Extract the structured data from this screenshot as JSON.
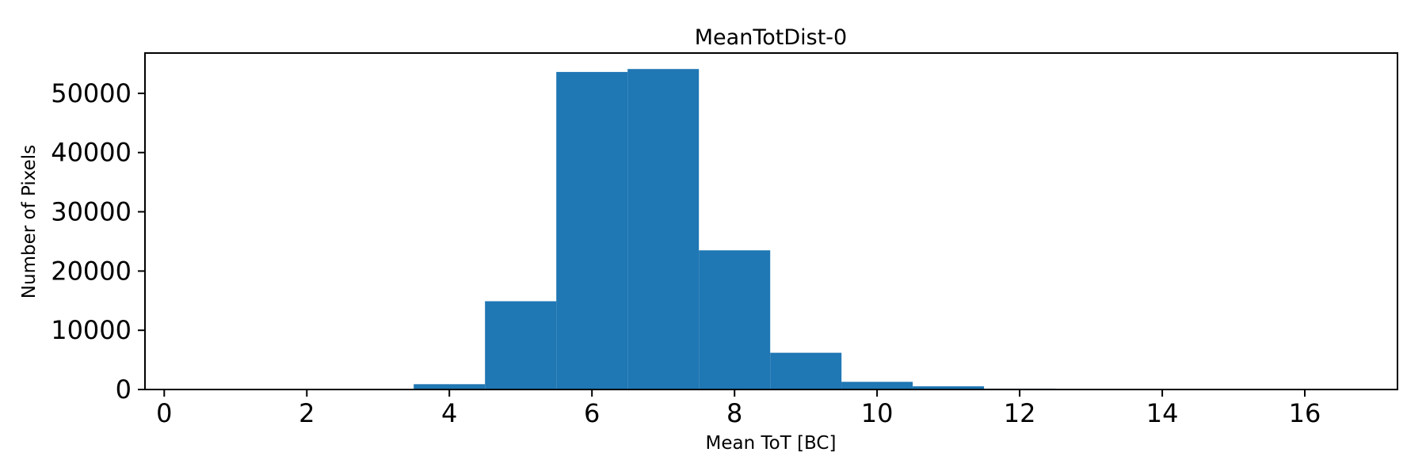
{
  "figure": {
    "background": "#ffffff"
  },
  "chart_data": {
    "type": "bar",
    "subtype": "histogram",
    "title": "MeanTotDist-0",
    "xlabel": "Mean ToT [BC]",
    "ylabel": "Number of Pixels",
    "bar_color": "#1f77b4",
    "axis_color": "#000000",
    "bin_edges": [
      3.5,
      4.5,
      5.5,
      6.5,
      7.5,
      8.5,
      9.5,
      10.5,
      11.5,
      12.5
    ],
    "counts": [
      900,
      14900,
      53600,
      54100,
      23500,
      6200,
      1300,
      550,
      150
    ],
    "x_ticks": [
      0,
      2,
      4,
      6,
      8,
      10,
      12,
      14,
      16
    ],
    "y_ticks": [
      0,
      10000,
      20000,
      30000,
      40000,
      50000
    ],
    "xlim": [
      -0.27,
      17.3
    ],
    "ylim": [
      0,
      56800
    ],
    "grid": false,
    "legend": false
  }
}
